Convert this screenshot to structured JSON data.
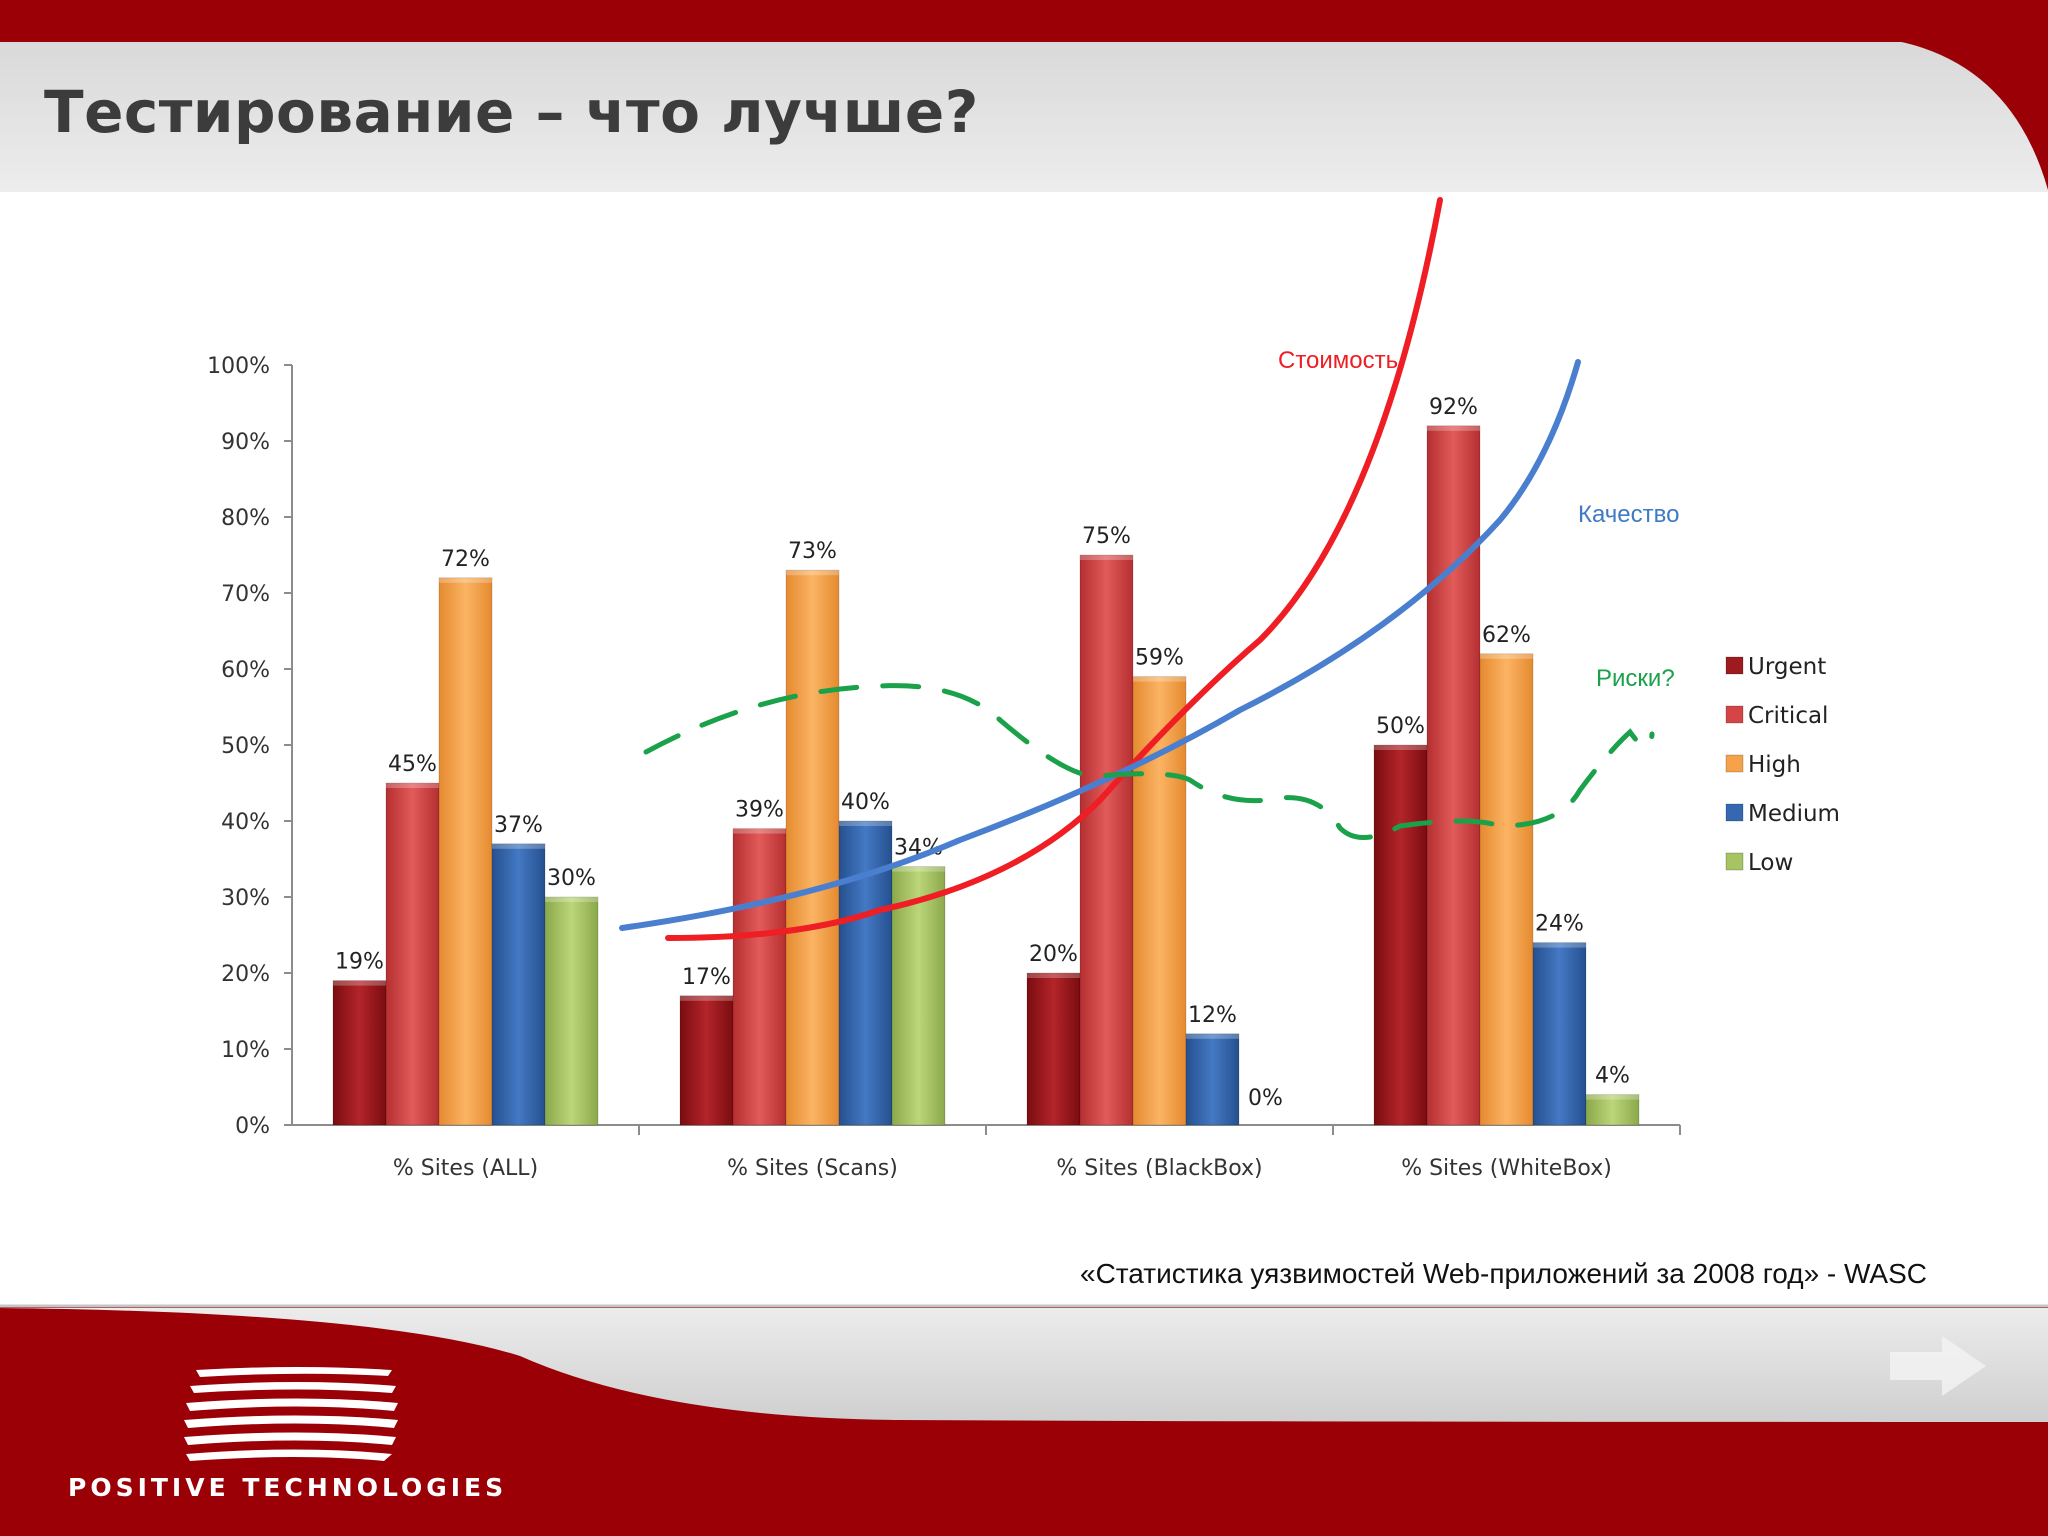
{
  "slide": {
    "title": "Тестирование – что лучше?",
    "source": "«Статистика уязвимостей Web-приложений за 2008 год»  - WASC",
    "brand": "POSITIVE TECHNOLOGIES"
  },
  "colors": {
    "header_red": "#9a0006",
    "header_gray": "#e4e4e4",
    "Urgent": "#9e1a1e",
    "Critical": "#d64546",
    "High": "#f6a24a",
    "Medium": "#3568b1",
    "Low": "#a6c462",
    "cost_curve": "#ee1e24",
    "quality_curve": "#4a7fd0",
    "risk_curve": "#1aa14a"
  },
  "chart_data": {
    "type": "bar",
    "categories": [
      "% Sites (ALL)",
      "% Sites (Scans)",
      "% Sites (BlackBox)",
      "% Sites (WhiteBox)"
    ],
    "series": [
      {
        "name": "Urgent",
        "values": [
          19,
          17,
          20,
          50
        ]
      },
      {
        "name": "Critical",
        "values": [
          45,
          39,
          75,
          92
        ]
      },
      {
        "name": "High",
        "values": [
          72,
          73,
          59,
          62
        ]
      },
      {
        "name": "Medium",
        "values": [
          37,
          40,
          12,
          24
        ]
      },
      {
        "name": "Low",
        "values": [
          30,
          34,
          0,
          4
        ]
      }
    ],
    "data_labels": [
      [
        "19%",
        "17%",
        "20%",
        "50%"
      ],
      [
        "45%",
        "39%",
        "75%",
        "92%"
      ],
      [
        "72%",
        "73%",
        "59%",
        "62%"
      ],
      [
        "37%",
        "40%",
        "12%",
        "24%"
      ],
      [
        "30%",
        "34%",
        "0%",
        "4%"
      ]
    ],
    "y_ticks": [
      "0%",
      "10%",
      "20%",
      "30%",
      "40%",
      "50%",
      "60%",
      "70%",
      "80%",
      "90%",
      "100%"
    ],
    "ylim": [
      0,
      100
    ],
    "legend_position": "right",
    "grid": false,
    "annotations": [
      {
        "label": "Стоимость",
        "kind": "hand-drawn curve",
        "color": "#ee1e24"
      },
      {
        "label": "Качество",
        "kind": "hand-drawn curve",
        "color": "#4a7fd0"
      },
      {
        "label": "Риски?",
        "kind": "hand-drawn dashed curve",
        "color": "#1aa14a"
      }
    ]
  }
}
